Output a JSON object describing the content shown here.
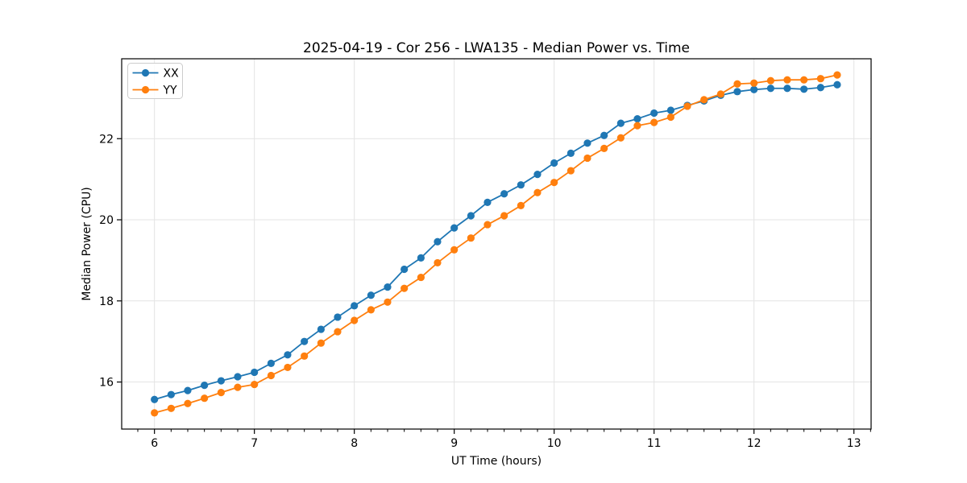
{
  "chart_data": {
    "type": "line",
    "title": "2025-04-19 - Cor 256 - LWA135 - Median Power vs. Time",
    "xlabel": "UT Time (hours)",
    "ylabel": "Median Power (CPU)",
    "xlim": [
      5.672,
      13.172
    ],
    "ylim": [
      14.84,
      23.97
    ],
    "xticks": [
      6,
      7,
      8,
      9,
      10,
      11,
      12,
      13
    ],
    "yticks": [
      16,
      18,
      20,
      22
    ],
    "x_minor_divisions": 6,
    "grid": true,
    "grid_color": "#e4e4e4",
    "spine_color": "#000000",
    "legend": {
      "position": "upper left",
      "entries": [
        "XX",
        "YY"
      ]
    },
    "marker": "circle",
    "x": [
      6,
      6.167,
      6.333,
      6.5,
      6.667,
      6.833,
      7,
      7.167,
      7.333,
      7.5,
      7.667,
      7.833,
      8,
      8.167,
      8.333,
      8.5,
      8.667,
      8.833,
      9,
      9.167,
      9.333,
      9.5,
      9.667,
      9.833,
      10,
      10.167,
      10.333,
      10.5,
      10.667,
      10.833,
      11,
      11.167,
      11.333,
      11.5,
      11.667,
      11.833,
      12,
      12.167,
      12.333,
      12.5,
      12.667,
      12.833
    ],
    "series": [
      {
        "name": "XX",
        "color": "#1f77b4",
        "values": [
          15.57,
          15.69,
          15.79,
          15.92,
          16.03,
          16.13,
          16.24,
          16.46,
          16.67,
          17.0,
          17.3,
          17.6,
          17.88,
          18.14,
          18.34,
          18.78,
          19.06,
          19.46,
          19.8,
          20.1,
          20.43,
          20.64,
          20.86,
          21.12,
          21.4,
          21.64,
          21.89,
          22.08,
          22.38,
          22.49,
          22.63,
          22.7,
          22.82,
          22.93,
          23.07,
          23.16,
          23.21,
          23.24,
          23.24,
          23.22,
          23.26,
          23.33
        ]
      },
      {
        "name": "YY",
        "color": "#ff7f0e",
        "values": [
          15.24,
          15.35,
          15.47,
          15.6,
          15.74,
          15.87,
          15.94,
          16.16,
          16.36,
          16.64,
          16.96,
          17.24,
          17.52,
          17.78,
          17.97,
          18.31,
          18.58,
          18.94,
          19.26,
          19.55,
          19.88,
          20.1,
          20.35,
          20.67,
          20.92,
          21.21,
          21.52,
          21.76,
          22.02,
          22.32,
          22.4,
          22.53,
          22.8,
          22.96,
          23.1,
          23.35,
          23.37,
          23.43,
          23.45,
          23.45,
          23.48,
          23.57
        ]
      }
    ]
  }
}
